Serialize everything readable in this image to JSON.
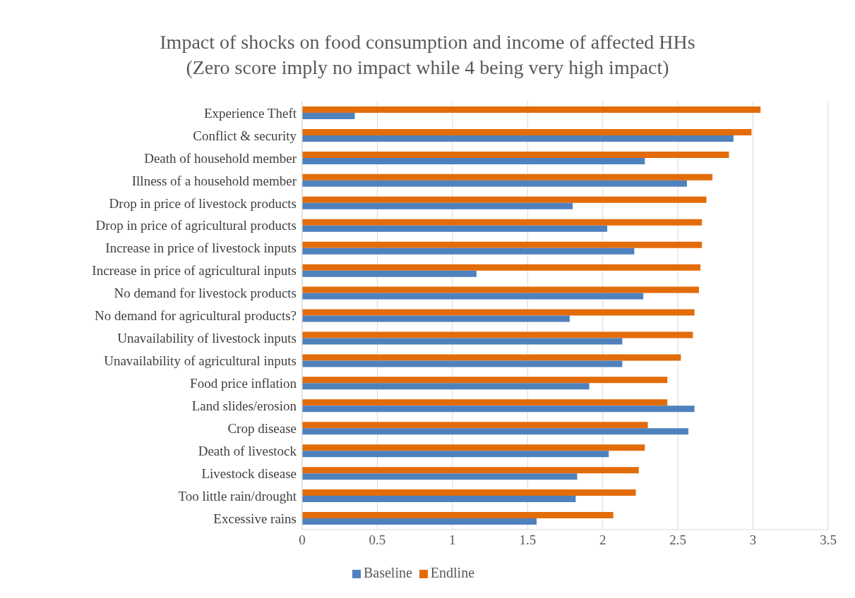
{
  "chart_data": {
    "type": "bar",
    "orientation": "horizontal",
    "title": "Impact of shocks on food consumption and income of affected HHs\n(Zero score imply no impact while 4 being very high impact)",
    "categories": [
      "Experience Theft",
      "Conflict & security",
      "Death of household member",
      "Illness of a household member",
      "Drop in price of livestock products",
      "Drop in price of agricultural products",
      "Increase in price of livestock inputs",
      "Increase in price of agricultural inputs",
      "No demand for livestock products",
      "No demand for agricultural products?",
      "Unavailability of livestock inputs",
      "Unavailability of agricultural inputs",
      "Food price inflation",
      "Land slides/erosion",
      "Crop disease",
      "Death of livestock",
      "Livestock disease",
      "Too little rain/drought",
      "Excessive rains"
    ],
    "series": [
      {
        "name": "Endline",
        "color": "#e36c0a",
        "values": [
          3.05,
          2.99,
          2.84,
          2.73,
          2.69,
          2.66,
          2.66,
          2.65,
          2.64,
          2.61,
          2.6,
          2.52,
          2.43,
          2.43,
          2.3,
          2.28,
          2.24,
          2.22,
          2.07
        ]
      },
      {
        "name": "Baseline",
        "color": "#4f81bd",
        "values": [
          0.35,
          2.87,
          2.28,
          2.56,
          1.8,
          2.03,
          2.21,
          1.16,
          2.27,
          1.78,
          2.13,
          2.13,
          1.91,
          2.61,
          2.57,
          2.04,
          1.83,
          1.82,
          1.56
        ]
      }
    ],
    "xlim": [
      0,
      3.5
    ],
    "xticks": [
      0,
      0.5,
      1,
      1.5,
      2,
      2.5,
      3,
      3.5
    ],
    "grid": "x",
    "legend": "bottom"
  }
}
